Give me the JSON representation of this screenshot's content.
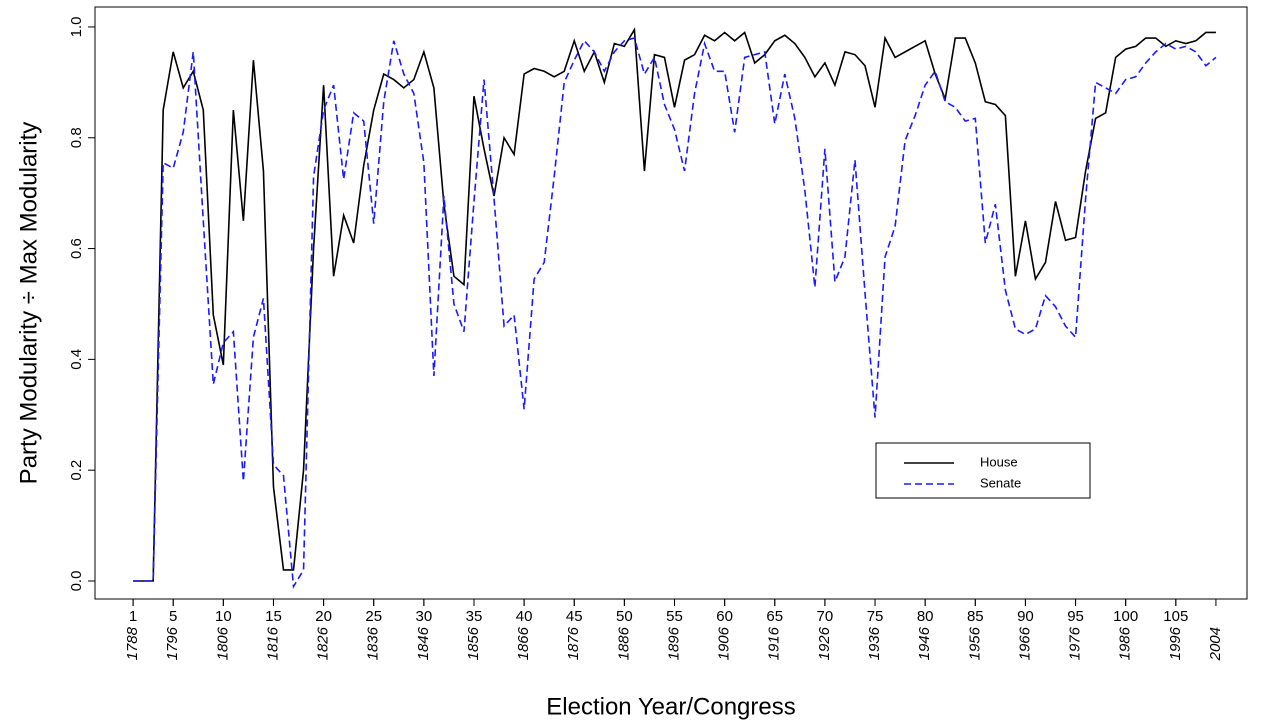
{
  "chart_data": {
    "type": "line",
    "xlabel": "Election Year/Congress",
    "ylabel": "Party Modularity ÷ Max Modularity",
    "x": [
      1,
      2,
      3,
      4,
      5,
      6,
      7,
      8,
      9,
      10,
      11,
      12,
      13,
      14,
      15,
      16,
      17,
      18,
      19,
      20,
      21,
      22,
      23,
      24,
      25,
      26,
      27,
      28,
      29,
      30,
      31,
      32,
      33,
      34,
      35,
      36,
      37,
      38,
      39,
      40,
      41,
      42,
      43,
      44,
      45,
      46,
      47,
      48,
      49,
      50,
      51,
      52,
      53,
      54,
      55,
      56,
      57,
      58,
      59,
      60,
      61,
      62,
      63,
      64,
      65,
      66,
      67,
      68,
      69,
      70,
      71,
      72,
      73,
      74,
      75,
      76,
      77,
      78,
      79,
      80,
      81,
      82,
      83,
      84,
      85,
      86,
      87,
      88,
      89,
      90,
      91,
      92,
      93,
      94,
      95,
      96,
      97,
      98,
      99,
      100,
      101,
      102,
      103,
      104,
      105,
      106,
      107,
      108,
      109
    ],
    "series": [
      {
        "name": "House",
        "color": "#000000",
        "dash": false,
        "values": [
          0,
          0,
          0,
          0.85,
          0.955,
          0.89,
          0.92,
          0.85,
          0.48,
          0.39,
          0.85,
          0.65,
          0.94,
          0.74,
          0.17,
          0.02,
          0.02,
          0.2,
          0.6,
          0.895,
          0.55,
          0.66,
          0.61,
          0.75,
          0.85,
          0.915,
          0.905,
          0.89,
          0.905,
          0.955,
          0.89,
          0.68,
          0.55,
          0.535,
          0.875,
          0.78,
          0.695,
          0.8,
          0.77,
          0.915,
          0.925,
          0.92,
          0.91,
          0.92,
          0.975,
          0.92,
          0.955,
          0.9,
          0.97,
          0.965,
          0.995,
          0.74,
          0.95,
          0.945,
          0.855,
          0.94,
          0.95,
          0.985,
          0.975,
          0.99,
          0.975,
          0.99,
          0.935,
          0.95,
          0.975,
          0.985,
          0.97,
          0.945,
          0.91,
          0.935,
          0.895,
          0.955,
          0.95,
          0.93,
          0.855,
          0.98,
          0.945,
          0.955,
          0.965,
          0.975,
          0.915,
          0.87,
          0.98,
          0.98,
          0.935,
          0.865,
          0.86,
          0.84,
          0.55,
          0.65,
          0.545,
          0.575,
          0.685,
          0.615,
          0.62,
          0.74,
          0.835,
          0.845,
          0.945,
          0.96,
          0.965,
          0.98,
          0.98,
          0.965,
          0.975,
          0.97,
          0.975,
          0.99,
          0.99
        ]
      },
      {
        "name": "Senate",
        "color": "#1a1aff",
        "dash": true,
        "values": [
          0,
          0,
          0,
          0.755,
          0.745,
          0.81,
          0.955,
          0.65,
          0.355,
          0.43,
          0.45,
          0.18,
          0.44,
          0.51,
          0.21,
          0.19,
          -0.01,
          0.02,
          0.73,
          0.85,
          0.895,
          0.725,
          0.845,
          0.83,
          0.645,
          0.865,
          0.975,
          0.915,
          0.88,
          0.755,
          0.37,
          0.695,
          0.5,
          0.45,
          0.685,
          0.905,
          0.69,
          0.46,
          0.48,
          0.31,
          0.545,
          0.575,
          0.73,
          0.9,
          0.94,
          0.975,
          0.955,
          0.92,
          0.955,
          0.975,
          0.98,
          0.915,
          0.945,
          0.86,
          0.815,
          0.74,
          0.88,
          0.97,
          0.92,
          0.92,
          0.81,
          0.945,
          0.95,
          0.955,
          0.825,
          0.915,
          0.835,
          0.705,
          0.53,
          0.78,
          0.54,
          0.585,
          0.76,
          0.52,
          0.295,
          0.585,
          0.64,
          0.795,
          0.84,
          0.895,
          0.92,
          0.865,
          0.855,
          0.83,
          0.835,
          0.61,
          0.68,
          0.525,
          0.455,
          0.445,
          0.455,
          0.515,
          0.495,
          0.46,
          0.44,
          0.69,
          0.9,
          0.89,
          0.88,
          0.905,
          0.91,
          0.935,
          0.955,
          0.97,
          0.96,
          0.965,
          0.955,
          0.93,
          0.945
        ]
      }
    ],
    "xlim": [
      -2.8,
      112.1
    ],
    "xticks": [
      1,
      5,
      10,
      15,
      20,
      25,
      30,
      35,
      40,
      45,
      50,
      55,
      60,
      65,
      70,
      75,
      80,
      85,
      90,
      95,
      100,
      105
    ],
    "year_ticks": [
      {
        "value": 1,
        "label": "1788"
      },
      {
        "value": 5,
        "label": "1796"
      },
      {
        "value": 10,
        "label": "1806"
      },
      {
        "value": 15,
        "label": "1816"
      },
      {
        "value": 20,
        "label": "1826"
      },
      {
        "value": 25,
        "label": "1836"
      },
      {
        "value": 30,
        "label": "1846"
      },
      {
        "value": 35,
        "label": "1856"
      },
      {
        "value": 40,
        "label": "1866"
      },
      {
        "value": 45,
        "label": "1876"
      },
      {
        "value": 50,
        "label": "1886"
      },
      {
        "value": 55,
        "label": "1896"
      },
      {
        "value": 60,
        "label": "1906"
      },
      {
        "value": 65,
        "label": "1916"
      },
      {
        "value": 70,
        "label": "1926"
      },
      {
        "value": 75,
        "label": "1936"
      },
      {
        "value": 80,
        "label": "1946"
      },
      {
        "value": 85,
        "label": "1956"
      },
      {
        "value": 90,
        "label": "1966"
      },
      {
        "value": 95,
        "label": "1976"
      },
      {
        "value": 100,
        "label": "1986"
      },
      {
        "value": 105,
        "label": "1996"
      },
      {
        "value": 109,
        "label": "2004"
      }
    ],
    "ylim": [
      -0.0325,
      1.036
    ],
    "yticks": [
      {
        "value": 0,
        "label": "0.0"
      },
      0.2,
      0.4,
      0.6,
      0.8,
      {
        "value": 1,
        "label": "1.0"
      }
    ],
    "grid": false
  }
}
